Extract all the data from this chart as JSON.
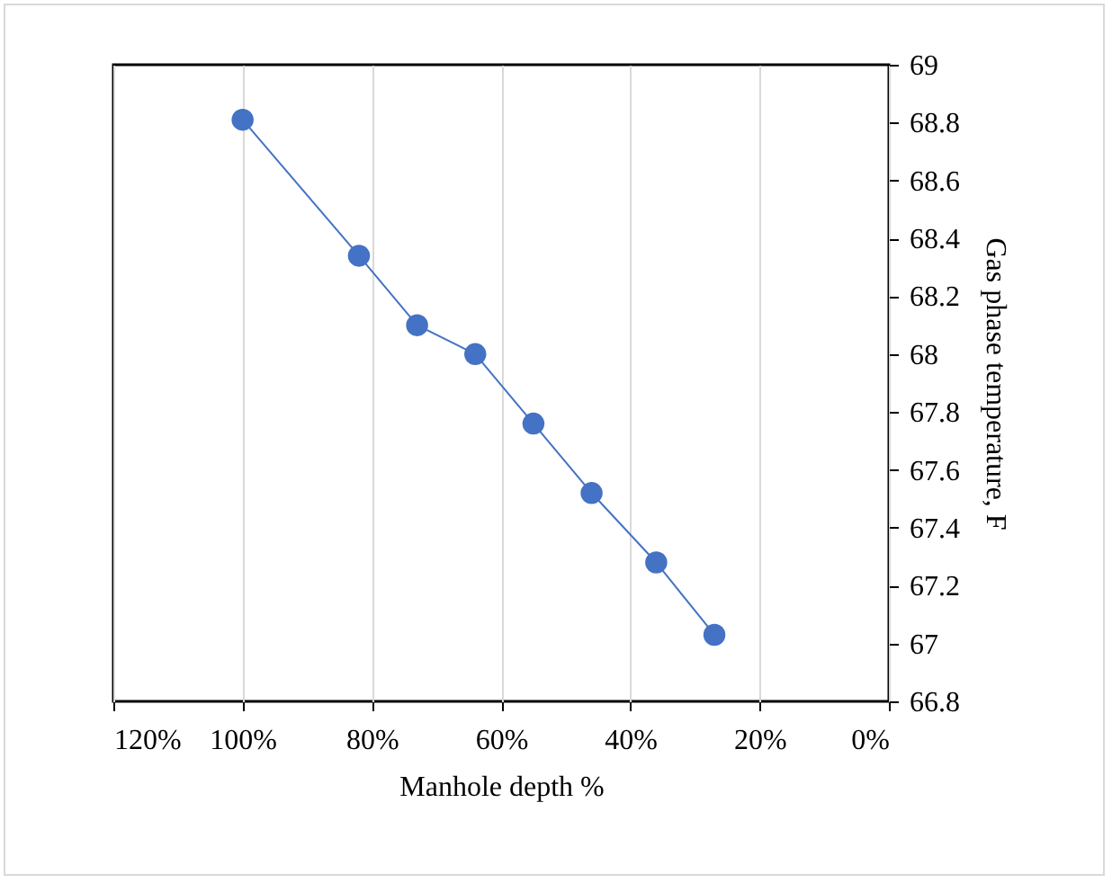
{
  "chart_data": {
    "type": "line",
    "xlabel": "Manhole depth %",
    "ylabel": "Gas phase temperature, F",
    "x": [
      100,
      82,
      73,
      64,
      55,
      46,
      36,
      27
    ],
    "series": [
      {
        "color": "#4472c4",
        "values": [
          68.81,
          68.34,
          68.1,
          68.0,
          67.76,
          67.52,
          67.28,
          67.03
        ]
      }
    ],
    "xlim": [
      120,
      0
    ],
    "xticks": [
      {
        "value": 120,
        "label": "120%"
      },
      {
        "value": 100,
        "label": "100%"
      },
      {
        "value": 80,
        "label": "80%"
      },
      {
        "value": 60,
        "label": "60%"
      },
      {
        "value": 40,
        "label": "40%"
      },
      {
        "value": 20,
        "label": "20%"
      },
      {
        "value": 0,
        "label": "0%"
      }
    ],
    "ylim": [
      66.8,
      69
    ],
    "yticks": [
      66.8,
      67,
      67.2,
      67.4,
      67.6,
      67.8,
      68,
      68.2,
      68.4,
      68.6,
      68.8,
      69
    ],
    "grid": "x",
    "marker": "circle",
    "line_style": "solid"
  }
}
